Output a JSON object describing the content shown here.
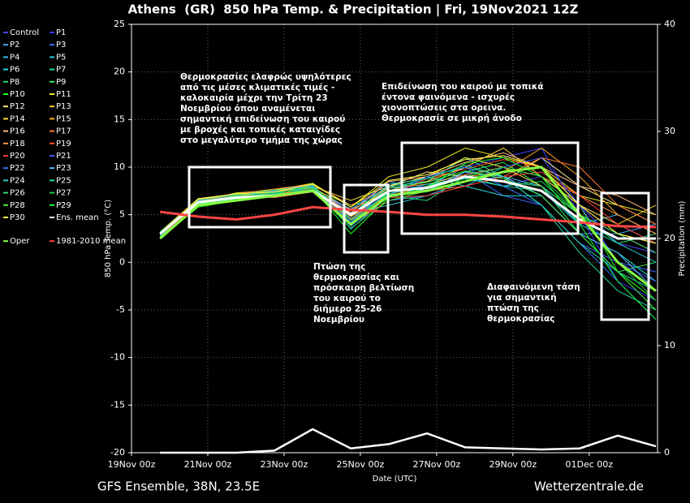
{
  "chart_data": {
    "type": "line",
    "title": "Athens  (GR)  850 hPa Temp. & Precipitation | Fri, 19Nov2021 12Z",
    "xlabel": "Date (UTC)",
    "ylabel": "850 hPa Temp. (°C)",
    "y2label": "Precipitation (mm)",
    "footer_left": "GFS Ensemble, 38N, 23.5E",
    "footer_right": "Wetterzentrale.de",
    "annotations": [
      "Θερμοκρασίες ελαφρώς υψηλότερες από τις μέσες κλιματικές τιμές - καλοκαιρία μέχρι την Τρίτη 23 Νοεμβρίου όπου αναμένεται σημαντική επιδείνωση του καιρού με βροχές και τοπικές καταιγίδες στο μεγαλύτερο τμήμα της χώρας",
      "Πτώση της θερμοκρασίας και πρόσκαιρη βελτίωση του καιρού το διήμερο 25-26 Νοεμβρίου",
      "Επιδείνωση του καιρού με τοπικά έντονα φαινόμενα - ισχυρές χιονοπτώσεις στα ορεινα. Θερμοκρασίε σε μικρή άνοδο",
      "Διαφαινόμενη τάση για σημαντική πτώση της θερμοκρασίας"
    ],
    "x": [
      18,
      42,
      66,
      90,
      114,
      138,
      162,
      186,
      210,
      234,
      258,
      282,
      306,
      330
    ],
    "xlim": [
      0,
      331
    ],
    "xticks": [
      {
        "value": 0,
        "label": "19Nov 00z"
      },
      {
        "value": 48,
        "label": "21Nov 00z"
      },
      {
        "value": 96,
        "label": "23Nov 00z"
      },
      {
        "value": 144,
        "label": "25Nov 00z"
      },
      {
        "value": 192,
        "label": "27Nov 00z"
      },
      {
        "value": 240,
        "label": "29Nov 00z"
      },
      {
        "value": 288,
        "label": "01Dec 00z"
      }
    ],
    "ylim": [
      -20,
      25
    ],
    "yticks": [
      25,
      20,
      15,
      10,
      5,
      0,
      -5,
      -10,
      -15,
      -20
    ],
    "y2lim": [
      0,
      40
    ],
    "y2ticks": [
      0,
      10,
      20,
      30,
      40
    ],
    "grid": true,
    "series": [
      {
        "name": "Control",
        "color": "#4a4aff",
        "values": [
          3,
          6.5,
          7,
          7.2,
          7.8,
          4.5,
          8,
          8.5,
          9,
          8,
          9,
          6,
          2,
          1
        ]
      },
      {
        "name": "P1",
        "color": "#3b3bff",
        "values": [
          3,
          6,
          6.8,
          7,
          7.5,
          5,
          7,
          9,
          10,
          11,
          12,
          5,
          -2,
          -4
        ]
      },
      {
        "name": "P2",
        "color": "#44a8ff",
        "values": [
          2.8,
          6.2,
          7.1,
          6.8,
          8,
          4,
          6.5,
          7,
          8.5,
          9,
          7,
          3,
          3,
          4
        ]
      },
      {
        "name": "P3",
        "color": "#3b6bff",
        "values": [
          3.1,
          6.4,
          6.6,
          7.3,
          7.6,
          5.5,
          8.5,
          7.5,
          9.5,
          7,
          6,
          2,
          0,
          -1
        ]
      },
      {
        "name": "P4",
        "color": "#33bbee",
        "values": [
          2.9,
          6.1,
          7,
          7.5,
          8.2,
          3.5,
          7,
          8,
          10,
          9,
          8,
          4,
          5,
          3
        ]
      },
      {
        "name": "P5",
        "color": "#22ccdd",
        "values": [
          3,
          6.3,
          6.9,
          7.1,
          7.4,
          5.2,
          6,
          7,
          8,
          10,
          9,
          6,
          4,
          2
        ]
      },
      {
        "name": "P6",
        "color": "#22dddd",
        "values": [
          3.2,
          6.5,
          7.2,
          6.9,
          7.9,
          4.8,
          7.5,
          9,
          8,
          7,
          7,
          3,
          1,
          -2
        ]
      },
      {
        "name": "P7",
        "color": "#22dd99",
        "values": [
          2.7,
          6,
          6.7,
          7.4,
          8.1,
          4.2,
          8,
          8.5,
          11,
          9,
          6,
          1,
          -3,
          -5
        ]
      },
      {
        "name": "P8",
        "color": "#22dd66",
        "values": [
          3,
          6.6,
          7,
          7,
          7.7,
          6,
          7,
          6.5,
          9,
          8,
          8.5,
          5,
          2,
          3
        ]
      },
      {
        "name": "P9",
        "color": "#33ee55",
        "values": [
          3.1,
          6.2,
          6.8,
          7.2,
          7.5,
          4.5,
          7.2,
          8,
          9.5,
          10.5,
          8,
          3,
          -1,
          0
        ]
      },
      {
        "name": "P10",
        "color": "#22ff22",
        "values": [
          2.5,
          5.8,
          6.5,
          7,
          7.8,
          3,
          6.8,
          7.8,
          8.8,
          9.5,
          10,
          6,
          -1,
          -4
        ]
      },
      {
        "name": "P11",
        "color": "#eeee22",
        "values": [
          3,
          6.4,
          7.3,
          7.6,
          8.3,
          5.8,
          9,
          10,
          12,
          11,
          10,
          7,
          6,
          5
        ]
      },
      {
        "name": "P12",
        "color": "#ffee88",
        "values": [
          2.9,
          6.3,
          6.9,
          7.1,
          7.6,
          5,
          8,
          9.5,
          9,
          8.5,
          11,
          8,
          6,
          4
        ]
      },
      {
        "name": "P13",
        "color": "#ffcc33",
        "values": [
          3,
          6,
          7,
          7.4,
          7.9,
          5.5,
          7.5,
          8.5,
          10,
          12,
          9,
          6,
          4,
          6
        ]
      },
      {
        "name": "P14",
        "color": "#ffdd44",
        "values": [
          3.2,
          6.7,
          7.2,
          7,
          8,
          6.5,
          8,
          9,
          11,
          10,
          8,
          5,
          3,
          2
        ]
      },
      {
        "name": "P15",
        "color": "#ffaa22",
        "values": [
          3,
          6.1,
          6.8,
          7.3,
          7.6,
          4.8,
          7,
          8,
          9,
          9.5,
          12,
          9,
          5,
          3
        ]
      },
      {
        "name": "P16",
        "color": "#ffbb88",
        "values": [
          2.8,
          6.2,
          7.1,
          7.5,
          7.8,
          5.2,
          8.5,
          9,
          10.5,
          11.5,
          10,
          8,
          7,
          5
        ]
      },
      {
        "name": "P17",
        "color": "#ff7733",
        "values": [
          3,
          6.5,
          7,
          6.8,
          7.4,
          4,
          6.5,
          7.5,
          8,
          9,
          11,
          10,
          6,
          4
        ]
      },
      {
        "name": "P18",
        "color": "#ff9944",
        "values": [
          3.1,
          6.3,
          7.2,
          7.7,
          8.2,
          6,
          7.8,
          8.2,
          9.2,
          10,
          9,
          7,
          5,
          3
        ]
      },
      {
        "name": "P19",
        "color": "#ff5522",
        "values": [
          2.9,
          6,
          6.6,
          7.2,
          7.5,
          4.5,
          7,
          8.8,
          9.8,
          10.8,
          10,
          6,
          3,
          1
        ]
      },
      {
        "name": "P20",
        "color": "#ff3333",
        "values": [
          3,
          6.4,
          7,
          7,
          7.8,
          5,
          6.8,
          7,
          8,
          9,
          9.5,
          7,
          4,
          2
        ]
      },
      {
        "name": "P21",
        "color": "#4455ff",
        "values": [
          3,
          6.2,
          6.9,
          7.3,
          7.7,
          4.2,
          7.5,
          8,
          9,
          10,
          11,
          6,
          0,
          -2
        ]
      },
      {
        "name": "P22",
        "color": "#3377ff",
        "values": [
          2.8,
          6.6,
          7.1,
          7.5,
          8,
          3.8,
          7,
          9,
          10,
          8,
          6,
          2,
          -2,
          -6
        ]
      },
      {
        "name": "P23",
        "color": "#55bbff",
        "values": [
          3.1,
          6.1,
          6.8,
          7,
          7.6,
          5.6,
          8,
          7.5,
          9.5,
          9,
          7,
          3,
          1,
          -3
        ]
      },
      {
        "name": "P24",
        "color": "#22cccc",
        "values": [
          3,
          6.5,
          7.2,
          7.2,
          7.9,
          4.6,
          7.2,
          8.2,
          8.8,
          8,
          7.5,
          4,
          2,
          0
        ]
      },
      {
        "name": "P25",
        "color": "#22ddaa",
        "values": [
          2.9,
          6.2,
          6.7,
          7.4,
          7.5,
          5,
          8.2,
          8.8,
          10.2,
          9,
          6,
          2,
          -1,
          -3
        ]
      },
      {
        "name": "P26",
        "color": "#33dd77",
        "values": [
          3,
          6.4,
          7,
          7.1,
          8.1,
          4.4,
          6.8,
          8,
          9,
          8.5,
          8,
          5,
          3,
          1
        ]
      },
      {
        "name": "P27",
        "color": "#22cc44",
        "values": [
          3.2,
          6.3,
          6.9,
          7.3,
          7.7,
          3.6,
          6.5,
          7.5,
          9,
          10,
          9,
          5,
          0,
          -4
        ]
      },
      {
        "name": "P28",
        "color": "#44ee44",
        "values": [
          2.7,
          6,
          7.1,
          7.6,
          7.8,
          4.9,
          7.8,
          8.4,
          9.6,
          8.8,
          7,
          3,
          -1,
          -5
        ]
      },
      {
        "name": "P29",
        "color": "#11ff33",
        "values": [
          2.6,
          5.9,
          6.6,
          7,
          7.6,
          4.1,
          7.4,
          7.9,
          10.4,
          11,
          9,
          4,
          -2,
          -6
        ]
      },
      {
        "name": "P30",
        "color": "#ffff44",
        "values": [
          3,
          6.6,
          7.2,
          7.4,
          8.2,
          5.8,
          8.6,
          9.2,
          10.8,
          11.2,
          10,
          6,
          3,
          2
        ]
      },
      {
        "name": "Ens. mean",
        "color": "#ffffff",
        "values": [
          3,
          6.3,
          6.8,
          7,
          7.5,
          5,
          7.5,
          7.8,
          9,
          8.5,
          7.5,
          4.5,
          2.5,
          2.5
        ],
        "precip": [
          0,
          0,
          0,
          0.2,
          2.2,
          0.4,
          0.8,
          1.8,
          0.5,
          0.4,
          0.3,
          0.4,
          1.6,
          0.6
        ]
      },
      {
        "name": "Oper",
        "color": "#88ff44",
        "values": [
          2.5,
          6,
          6.5,
          7,
          7.5,
          4,
          7,
          7.5,
          8.5,
          9.5,
          10,
          5,
          0,
          -3
        ]
      },
      {
        "name": "1981-2010 mean",
        "color": "#ff4444",
        "values": [
          5.3,
          4.8,
          4.5,
          5,
          5.8,
          5.5,
          5.3,
          5,
          5,
          4.8,
          4.5,
          4.2,
          3.8,
          3.7
        ]
      }
    ]
  }
}
